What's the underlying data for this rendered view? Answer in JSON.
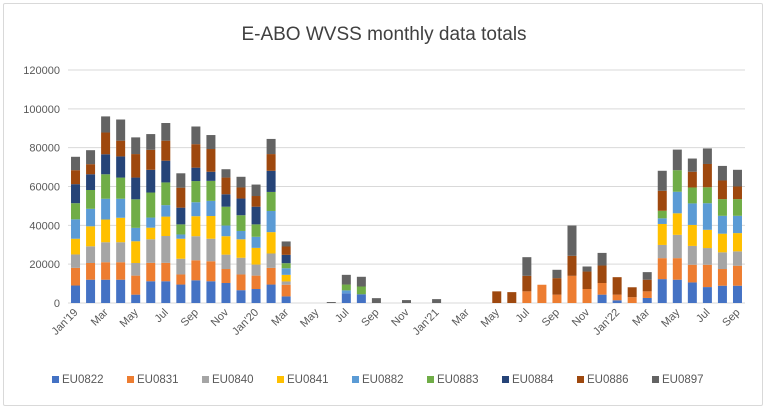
{
  "chart_data": {
    "type": "bar",
    "stacked": true,
    "title": "E-ABO WVSS monthly data totals",
    "xlabel": "",
    "ylabel": "",
    "ylim": [
      0,
      120000
    ],
    "yticks": [
      0,
      20000,
      40000,
      60000,
      80000,
      100000,
      120000
    ],
    "ytick_labels": [
      "0",
      "20000",
      "40000",
      "60000",
      "80000",
      "100000",
      "120000"
    ],
    "grid": true,
    "legend_position": "bottom",
    "categories": [
      "Jan'19",
      "Feb",
      "Mar",
      "Apr",
      "May",
      "Jun",
      "Jul",
      "Aug",
      "Sep",
      "Oct",
      "Nov",
      "Dec",
      "Jan'20",
      "Feb",
      "Mar",
      "Apr",
      "May",
      "Jun",
      "Jul",
      "Aug",
      "Sep",
      "Oct",
      "Nov",
      "Dec",
      "Jan'21",
      "Feb",
      "Mar",
      "Apr",
      "May",
      "Jun",
      "Jul",
      "Aug",
      "Sep",
      "Oct",
      "Nov",
      "Dec",
      "Jan'22",
      "Feb",
      "Mar",
      "Apr",
      "May",
      "Jun",
      "Jul",
      "Aug",
      "Sep"
    ],
    "xtick_labels": [
      "Jan'19",
      "Mar",
      "May",
      "Jul",
      "Sep",
      "Nov",
      "Jan'20",
      "Mar",
      "May",
      "Jul",
      "Sep",
      "Nov",
      "Jan'21",
      "Mar",
      "May",
      "Jul",
      "Sep",
      "Nov",
      "Jan'22",
      "Mar",
      "May",
      "Jul",
      "Sep"
    ],
    "series": [
      {
        "name": "EU0822",
        "color": "#4472c4",
        "values": [
          9000,
          12000,
          12000,
          12000,
          4300,
          11200,
          11200,
          9500,
          11700,
          11200,
          10300,
          6600,
          7200,
          9500,
          3400,
          0,
          0,
          0,
          5000,
          4500,
          0,
          0,
          0,
          0,
          0,
          0,
          0,
          0,
          0,
          0,
          0,
          0,
          0,
          0,
          0,
          4300,
          1400,
          0,
          2600,
          12300,
          12000,
          10600,
          8200,
          8900,
          8900
        ]
      },
      {
        "name": "EU0831",
        "color": "#ed7d31",
        "values": [
          9100,
          8600,
          9000,
          9000,
          9800,
          9500,
          9500,
          5200,
          10300,
          10300,
          7200,
          8100,
          6900,
          8600,
          6000,
          0,
          0,
          0,
          0,
          0,
          0,
          0,
          0,
          0,
          0,
          0,
          0,
          0,
          0,
          0,
          6000,
          9400,
          4300,
          14000,
          7200,
          6000,
          2900,
          3000,
          3400,
          10800,
          11100,
          9100,
          11500,
          8600,
          10300
        ]
      },
      {
        "name": "EU0840",
        "color": "#a5a5a5",
        "values": [
          6900,
          8600,
          10300,
          10300,
          6500,
          12100,
          13800,
          8100,
          12400,
          11600,
          7400,
          8600,
          5700,
          7400,
          1700,
          0,
          0,
          0,
          0,
          0,
          0,
          0,
          0,
          0,
          0,
          0,
          0,
          0,
          0,
          0,
          0,
          0,
          0,
          0,
          0,
          0,
          0,
          0,
          0,
          6800,
          12000,
          9700,
          8600,
          8600,
          7400
        ]
      },
      {
        "name": "EU0841",
        "color": "#ffc000",
        "values": [
          8100,
          10300,
          11700,
          12600,
          11200,
          6000,
          10000,
          10300,
          10300,
          11700,
          9500,
          9500,
          8600,
          11000,
          3400,
          0,
          0,
          0,
          0,
          0,
          0,
          0,
          0,
          0,
          0,
          0,
          0,
          0,
          0,
          0,
          0,
          0,
          0,
          0,
          0,
          0,
          0,
          0,
          0,
          10800,
          11100,
          10800,
          9400,
          9600,
          9400
        ]
      },
      {
        "name": "EU0882",
        "color": "#5b9bd5",
        "values": [
          10000,
          9000,
          10700,
          9800,
          6900,
          5200,
          5900,
          2200,
          7200,
          7800,
          5500,
          4300,
          5700,
          10900,
          3400,
          0,
          0,
          0,
          1500,
          0,
          0,
          0,
          0,
          0,
          0,
          0,
          0,
          0,
          0,
          0,
          0,
          0,
          0,
          0,
          0,
          0,
          0,
          0,
          0,
          2900,
          11100,
          11100,
          13700,
          9200,
          8900
        ]
      },
      {
        "name": "EU0883",
        "color": "#70ad47",
        "values": [
          8300,
          9700,
          12600,
          10900,
          14700,
          12900,
          11700,
          5200,
          10900,
          10300,
          9700,
          8100,
          6400,
          9800,
          2600,
          0,
          0,
          0,
          3000,
          4000,
          0,
          0,
          0,
          0,
          0,
          0,
          0,
          0,
          0,
          0,
          0,
          0,
          0,
          0,
          0,
          0,
          0,
          0,
          0,
          3900,
          11100,
          8200,
          8200,
          8600,
          8600
        ]
      },
      {
        "name": "EU0884",
        "color": "#264478",
        "values": [
          9800,
          8100,
          10300,
          10900,
          11200,
          11700,
          11200,
          8600,
          6900,
          4700,
          6400,
          8600,
          9100,
          10900,
          4300,
          0,
          0,
          0,
          0,
          0,
          0,
          0,
          0,
          0,
          0,
          0,
          0,
          0,
          0,
          0,
          0,
          0,
          0,
          0,
          0,
          0,
          0,
          0,
          0,
          0,
          0,
          0,
          0,
          0,
          0
        ]
      },
      {
        "name": "EU0886",
        "color": "#9e480e",
        "values": [
          7200,
          5200,
          11200,
          8100,
          12100,
          10300,
          10300,
          10300,
          12100,
          11700,
          8600,
          5700,
          5500,
          8600,
          4300,
          0,
          0,
          0,
          0,
          0,
          0,
          0,
          0,
          0,
          0,
          0,
          0,
          0,
          6000,
          5600,
          8000,
          0,
          8500,
          10300,
          9000,
          9000,
          9000,
          5100,
          6000,
          10300,
          0,
          8100,
          12000,
          9600,
          6500
        ]
      },
      {
        "name": "EU0897",
        "color": "#636363",
        "values": [
          6900,
          7200,
          8300,
          10900,
          8600,
          8100,
          9100,
          7400,
          9100,
          7200,
          4300,
          5500,
          5900,
          7800,
          2600,
          0,
          0,
          500,
          5000,
          5000,
          2500,
          0,
          1500,
          0,
          2000,
          0,
          0,
          0,
          0,
          0,
          9600,
          0,
          4300,
          15600,
          2600,
          6500,
          0,
          0,
          3900,
          10300,
          10600,
          6800,
          8000,
          7500,
          8600
        ]
      }
    ]
  }
}
